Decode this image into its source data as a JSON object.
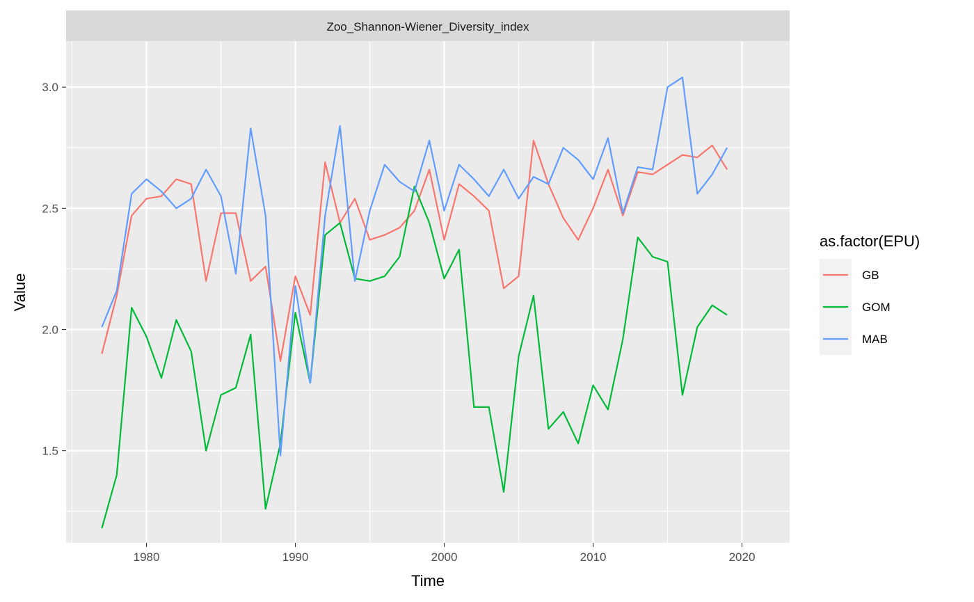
{
  "chart_data": {
    "type": "line",
    "facet_title": "Zoo_Shannon-Wiener_Diversity_index",
    "xlabel": "Time",
    "ylabel": "Value",
    "legend_title": "as.factor(EPU)",
    "legend_position": "right",
    "grid": true,
    "xlim": [
      1974.6,
      2023.2
    ],
    "ylim": [
      1.12,
      3.19
    ],
    "x_ticks": [
      1980,
      1990,
      2000,
      2010,
      2020
    ],
    "y_ticks": [
      1.5,
      2.0,
      2.5,
      3.0
    ],
    "x_tick_labels": [
      "1980",
      "1990",
      "2000",
      "2010",
      "2020"
    ],
    "y_tick_labels": [
      "1.5",
      "2.0",
      "2.5",
      "3.0"
    ],
    "x": [
      1977,
      1978,
      1979,
      1980,
      1981,
      1982,
      1983,
      1984,
      1985,
      1986,
      1987,
      1988,
      1989,
      1990,
      1991,
      1992,
      1993,
      1994,
      1995,
      1996,
      1997,
      1998,
      1999,
      2000,
      2001,
      2002,
      2003,
      2004,
      2005,
      2006,
      2007,
      2008,
      2009,
      2010,
      2011,
      2012,
      2013,
      2014,
      2015,
      2016,
      2017,
      2018,
      2019
    ],
    "series": [
      {
        "name": "GB",
        "color": "#F8766D",
        "values": [
          1.9,
          2.14,
          2.47,
          2.54,
          2.55,
          2.62,
          2.6,
          2.2,
          2.48,
          2.48,
          2.2,
          2.26,
          1.87,
          2.22,
          2.06,
          2.69,
          2.44,
          2.54,
          2.37,
          2.39,
          2.42,
          2.49,
          2.66,
          2.37,
          2.6,
          2.55,
          2.49,
          2.17,
          2.22,
          2.78,
          2.6,
          2.46,
          2.37,
          2.5,
          2.66,
          2.47,
          2.65,
          2.64,
          2.68,
          2.72,
          2.71,
          2.76,
          2.66
        ]
      },
      {
        "name": "GOM",
        "color": "#00BA38",
        "values": [
          1.18,
          1.4,
          2.09,
          1.97,
          1.8,
          2.04,
          1.91,
          1.5,
          1.73,
          1.76,
          1.98,
          1.26,
          1.53,
          2.07,
          1.78,
          2.39,
          2.44,
          2.21,
          2.2,
          2.22,
          2.3,
          2.59,
          2.44,
          2.21,
          2.33,
          1.68,
          1.68,
          1.33,
          1.89,
          2.14,
          1.59,
          1.66,
          1.53,
          1.77,
          1.67,
          1.96,
          2.38,
          2.3,
          2.28,
          1.73,
          2.01,
          2.1,
          2.06
        ]
      },
      {
        "name": "MAB",
        "color": "#619CFF",
        "values": [
          2.01,
          2.16,
          2.56,
          2.62,
          2.57,
          2.5,
          2.54,
          2.66,
          2.55,
          2.23,
          2.83,
          2.47,
          1.48,
          2.18,
          1.78,
          2.47,
          2.84,
          2.2,
          2.49,
          2.68,
          2.61,
          2.57,
          2.78,
          2.49,
          2.68,
          2.62,
          2.55,
          2.66,
          2.54,
          2.63,
          2.6,
          2.75,
          2.7,
          2.62,
          2.79,
          2.48,
          2.67,
          2.66,
          3.0,
          3.04,
          2.56,
          2.64,
          2.75
        ]
      }
    ]
  }
}
